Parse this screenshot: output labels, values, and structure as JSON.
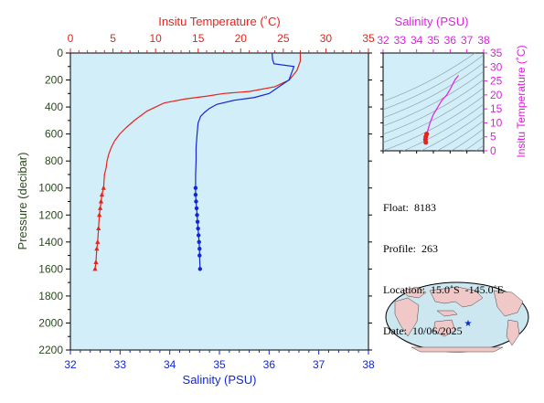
{
  "colors": {
    "temperature": "#e8231b",
    "salinity": "#1226d6",
    "ts": "#e020e0",
    "panel": "#d2eef8",
    "axis_left": "#2b4a1e",
    "land": "#f0c8c8"
  },
  "main": {
    "top_axis_title": "Insitu Temperature (˚C)",
    "bottom_axis_title": "Salinity (PSU)",
    "left_axis_title": "Pressure (decibar)",
    "temp_ticks": [
      "0",
      "5",
      "10",
      "15",
      "20",
      "25",
      "30",
      "35"
    ],
    "sal_ticks": [
      "32",
      "33",
      "34",
      "35",
      "36",
      "37",
      "38"
    ],
    "pressure_ticks": [
      "0",
      "200",
      "400",
      "600",
      "800",
      "1000",
      "1200",
      "1400",
      "1600",
      "1800",
      "2000",
      "2200"
    ]
  },
  "ts_plot": {
    "title": "Salinity (PSU)",
    "right_axis_title": "Insitu Temperature (˚C)",
    "sal_ticks": [
      "32",
      "33",
      "34",
      "35",
      "36",
      "37",
      "38"
    ],
    "temp_ticks": [
      "0",
      "5",
      "10",
      "15",
      "20",
      "25",
      "30",
      "35"
    ]
  },
  "info": {
    "float": "Float:  8183",
    "profile": "Profile:  263",
    "location": "Location:  15.0˚S  -145.0˚E",
    "date": "Date:  10/06/2025"
  },
  "chart_data": [
    {
      "type": "line",
      "title": "",
      "xlabel": "Insitu Temperature (˚C)",
      "ylabel": "Pressure (decibar)",
      "xlim": [
        0,
        35
      ],
      "ylim": [
        2200,
        0
      ],
      "series": [
        {
          "x": [
            27.0,
            27.0,
            26.6,
            25.7,
            24.0,
            21.0,
            18.0,
            16.0,
            13.5,
            11.0,
            9.0,
            7.5,
            6.6,
            5.8,
            5.2,
            4.8,
            4.5,
            4.3,
            4.2,
            4.0,
            3.9,
            3.7,
            3.6,
            3.5,
            3.4,
            3.3,
            3.2,
            3.1,
            3.0,
            2.9
          ],
          "y": [
            5,
            60,
            130,
            200,
            250,
            285,
            300,
            320,
            340,
            370,
            430,
            500,
            550,
            600,
            650,
            700,
            750,
            800,
            850,
            900,
            1000,
            1050,
            1100,
            1150,
            1200,
            1300,
            1400,
            1450,
            1550,
            1600
          ],
          "markers_from_index": 20
        },
        {
          "x": [
            36.06,
            36.07,
            36.1,
            36.5,
            36.4,
            36.2,
            36.0,
            35.7,
            35.3,
            34.95,
            34.8,
            34.7,
            34.62,
            34.57,
            34.55,
            34.53,
            34.53,
            34.52,
            34.52,
            34.52,
            34.53,
            34.54,
            34.55,
            34.56,
            34.57,
            34.58,
            34.59,
            34.6,
            34.6,
            34.61
          ],
          "y": [
            0,
            50,
            80,
            100,
            200,
            250,
            300,
            330,
            350,
            380,
            410,
            440,
            470,
            520,
            600,
            700,
            800,
            900,
            1000,
            1050,
            1100,
            1150,
            1200,
            1250,
            1300,
            1350,
            1400,
            1450,
            1500,
            1600
          ],
          "markers_from_index": 18
        }
      ]
    },
    {
      "type": "line",
      "title": "Salinity (PSU)",
      "xlabel": "Salinity (PSU)",
      "ylabel": "Insitu Temperature (˚C)",
      "xlim": [
        32,
        38
      ],
      "ylim": [
        0,
        35
      ],
      "series": [
        {
          "x": [
            36.5,
            36.3,
            36.0,
            35.8,
            35.5,
            35.2,
            35.0,
            34.8,
            34.7,
            34.6,
            34.55,
            34.53,
            34.55
          ],
          "y": [
            27.0,
            25.5,
            22.0,
            20.0,
            18.0,
            15.0,
            13.0,
            10.0,
            8.0,
            6.0,
            5.0,
            4.0,
            3.0
          ]
        }
      ]
    }
  ],
  "map": {
    "marker": "★"
  }
}
